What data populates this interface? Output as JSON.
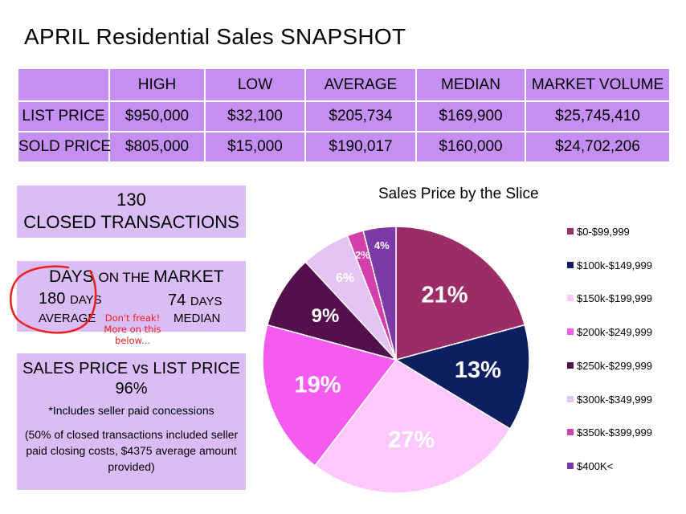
{
  "title": "APRIL Residential Sales SNAPSHOT",
  "stats_table": {
    "headers": [
      "",
      "HIGH",
      "LOW",
      "AVERAGE",
      "MEDIAN",
      "MARKET VOLUME"
    ],
    "rows": [
      [
        "LIST PRICE",
        "$950,000",
        "$32,100",
        "$205,734",
        "$169,900",
        "$25,745,410"
      ],
      [
        "SOLD PRICE",
        "$805,000",
        "$15,000",
        "$190,017",
        "$160,000",
        "$24,702,206"
      ]
    ]
  },
  "closed": {
    "count": "130",
    "label": "CLOSED TRANSACTIONS"
  },
  "days_on_market": {
    "title_a": "DAYS ",
    "title_b": "ON THE ",
    "title_c": "MARKET",
    "avg_value": "180 ",
    "avg_unit": "DAYS",
    "avg_label": "AVERAGE",
    "med_value": "74 ",
    "med_unit": "DAYS",
    "med_label": "MEDIAN",
    "note": "Don't freak! More on this below..."
  },
  "sales_vs_list": {
    "heading": "SALES PRICE  vs  LIST PRICE",
    "value": "96%",
    "note": "*Includes seller paid concessions",
    "note2": "(50% of closed transactions included seller paid closing costs, $4375 average amount provided)"
  },
  "chart_data": {
    "type": "pie",
    "title": "Sales Price by the Slice",
    "slices": [
      {
        "label": "$0-$99,999",
        "value": 21,
        "text": "21%",
        "color": "#9b2c66"
      },
      {
        "label": "$100k-$149,999",
        "value": 13,
        "text": "13%",
        "color": "#0e1f61"
      },
      {
        "label": "$150k-$199,999",
        "value": 27,
        "text": "27%",
        "color": "#fdc9fd"
      },
      {
        "label": "$200k-$249,999",
        "value": 19,
        "text": "19%",
        "color": "#f55bef"
      },
      {
        "label": "$250k-$299,999",
        "value": 9,
        "text": "9%",
        "color": "#54104d"
      },
      {
        "label": "$300k-$349,999",
        "value": 6,
        "text": "6%",
        "color": "#e3c4f2"
      },
      {
        "label": "$350k-$399,999",
        "value": 2,
        "text": "2%",
        "color": "#d43fab"
      },
      {
        "label": "$400K<",
        "value": 4,
        "text": "4%",
        "color": "#7b3aa6"
      }
    ],
    "legend_position": "right"
  }
}
